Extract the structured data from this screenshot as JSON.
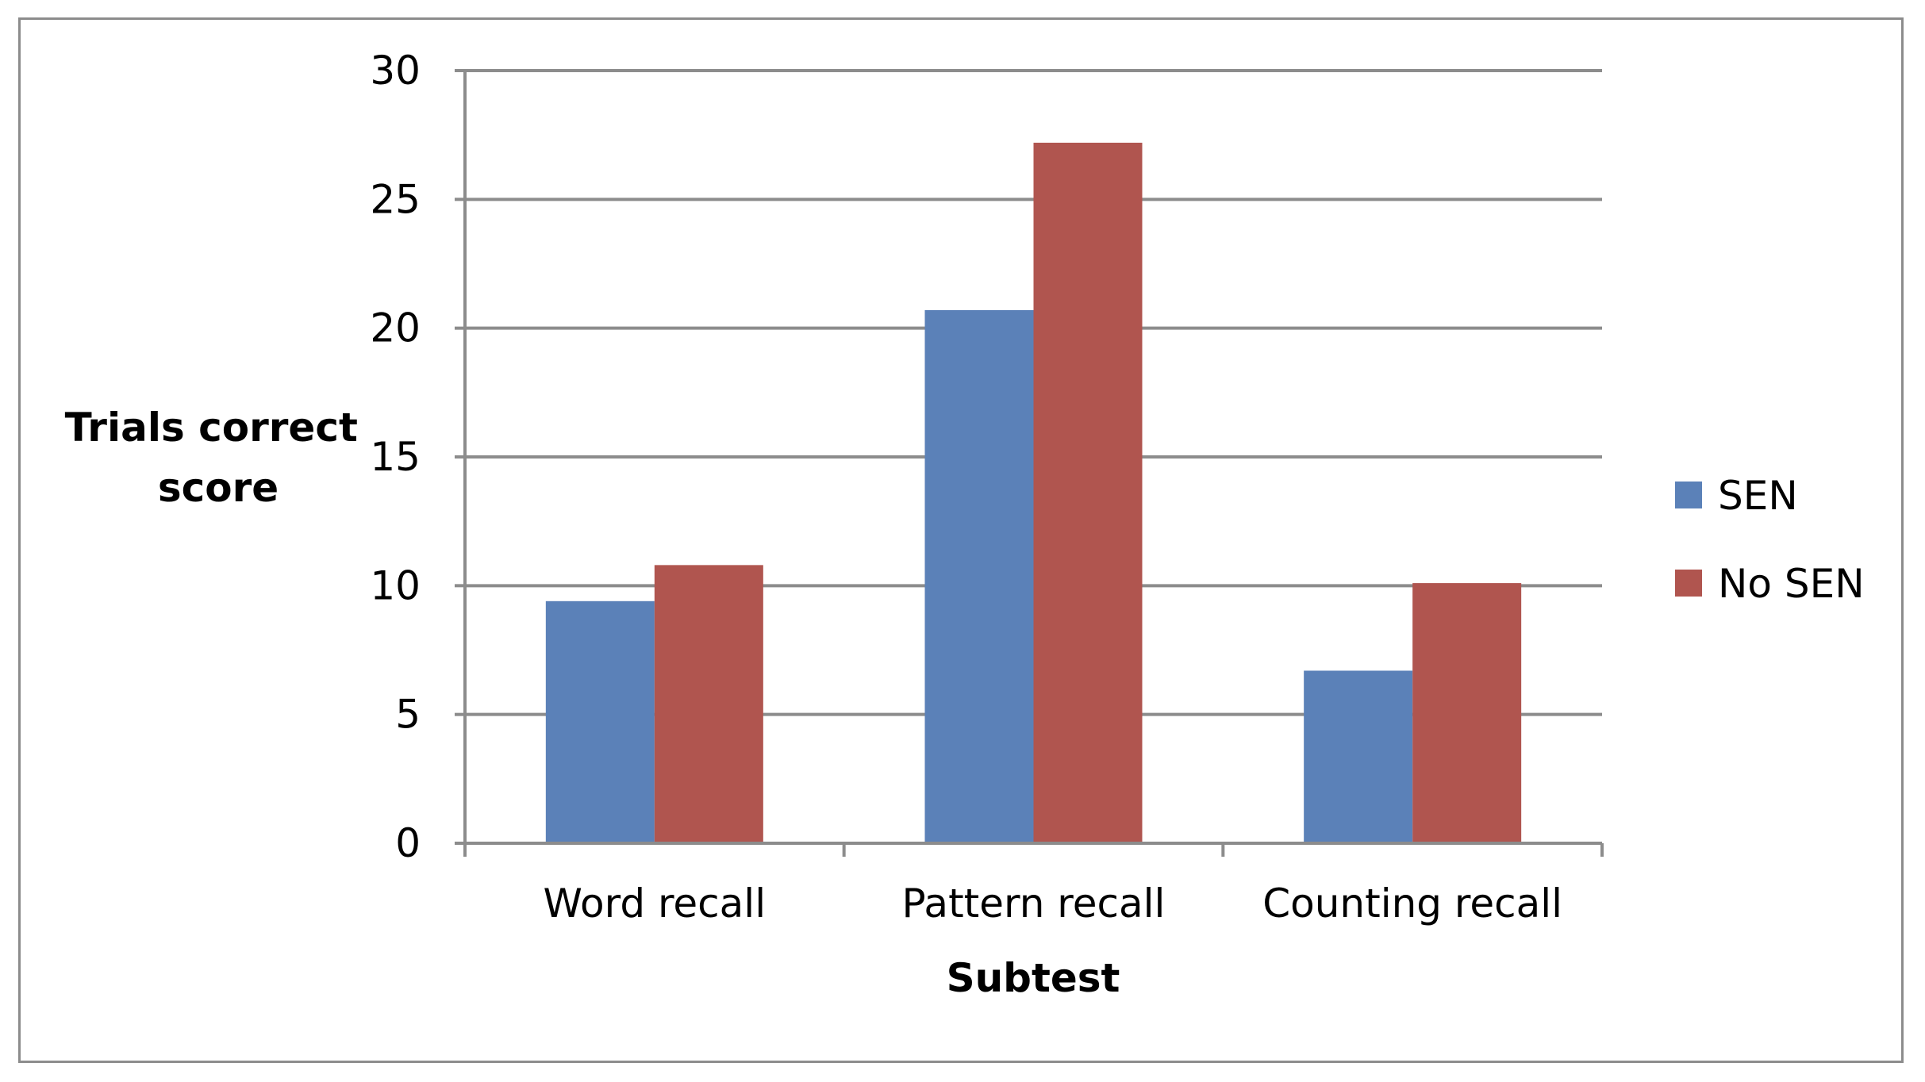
{
  "chart_data": {
    "type": "bar",
    "title": "",
    "xlabel": "Subtest",
    "ylabel_lines": [
      "Trials correct",
      "score"
    ],
    "categories": [
      "Word recall",
      "Pattern recall",
      "Counting recall"
    ],
    "series": [
      {
        "name": "SEN",
        "color": "#5b81b8",
        "values": [
          9.4,
          20.7,
          6.7
        ]
      },
      {
        "name": "No SEN",
        "color": "#b0554f",
        "values": [
          10.8,
          27.2,
          10.1
        ]
      }
    ],
    "ylim": [
      0,
      30
    ],
    "yticks": [
      0,
      5,
      10,
      15,
      20,
      25,
      30
    ],
    "grid": true,
    "legend_position": "right"
  }
}
